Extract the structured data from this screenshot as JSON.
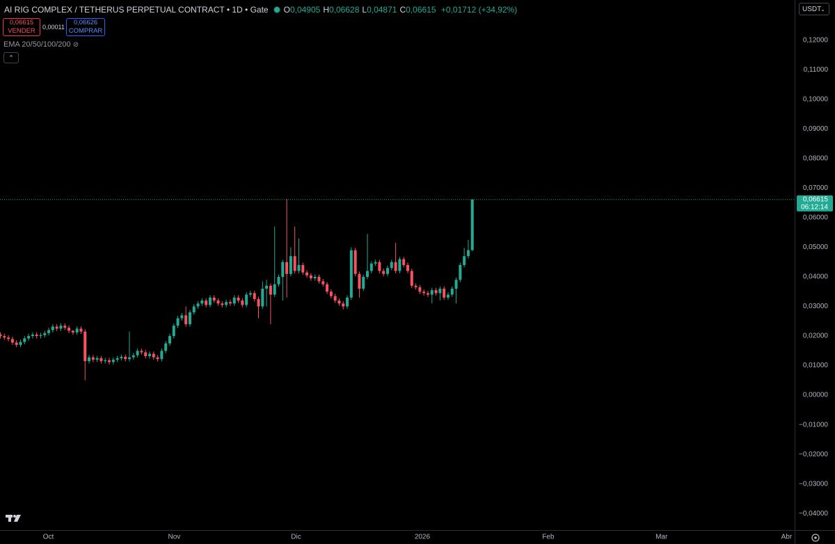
{
  "header": {
    "title": "AI RIG COMPLEX / TETHERUS PERPETUAL CONTRACT • 1D • Gate",
    "ohlc": [
      {
        "label": "O",
        "value": "0,04905"
      },
      {
        "label": "H",
        "value": "0,06628"
      },
      {
        "label": "L",
        "value": "0,04871"
      },
      {
        "label": "C",
        "value": "0,06615"
      }
    ],
    "change": "+0,01712 (+34,92%)",
    "sell": {
      "price": "0,06615",
      "label": "VENDER"
    },
    "spread": "0,00011",
    "buy": {
      "price": "0,06626",
      "label": "COMPRAR"
    },
    "indicator": "EMA 20/50/100/200",
    "currency": "USDT"
  },
  "chart_data": {
    "type": "candlestick",
    "up_color": "#22ab94",
    "down_color": "#f7525f",
    "grid": false,
    "last_price_label": "0,06615",
    "countdown": "06:12:14",
    "open": [
      0.0205,
      0.02,
      0.0195,
      0.019,
      0.0178,
      0.017,
      0.018,
      0.0192,
      0.02,
      0.0205,
      0.02,
      0.0203,
      0.021,
      0.022,
      0.0232,
      0.0225,
      0.0235,
      0.0228,
      0.0218,
      0.0212,
      0.0225,
      0.0215,
      0.0115,
      0.0128,
      0.012,
      0.0125,
      0.0115,
      0.0118,
      0.0112,
      0.012,
      0.0125,
      0.013,
      0.0122,
      0.0128,
      0.0135,
      0.015,
      0.0145,
      0.0132,
      0.014,
      0.0128,
      0.0122,
      0.015,
      0.0175,
      0.02,
      0.0235,
      0.026,
      0.027,
      0.024,
      0.028,
      0.03,
      0.031,
      0.032,
      0.0305,
      0.033,
      0.032,
      0.031,
      0.0305,
      0.0315,
      0.031,
      0.033,
      0.032,
      0.0305,
      0.034,
      0.0345,
      0.0325,
      0.03,
      0.036,
      0.037,
      0.034,
      0.0375,
      0.04,
      0.045,
      0.041,
      0.047,
      0.042,
      0.044,
      0.0415,
      0.0405,
      0.0395,
      0.04,
      0.0385,
      0.0375,
      0.035,
      0.0335,
      0.032,
      0.031,
      0.03,
      0.033,
      0.049,
      0.041,
      0.036,
      0.04,
      0.042,
      0.0445,
      0.045,
      0.042,
      0.041,
      0.043,
      0.045,
      0.042,
      0.046,
      0.044,
      0.042,
      0.037,
      0.0365,
      0.035,
      0.0345,
      0.034,
      0.0355,
      0.0345,
      0.036,
      0.033,
      0.034,
      0.036,
      0.039,
      0.044,
      0.047,
      0.04905
    ],
    "high": [
      0.0213,
      0.0208,
      0.0203,
      0.0198,
      0.0186,
      0.0188,
      0.02,
      0.0208,
      0.0213,
      0.0213,
      0.0211,
      0.0218,
      0.0228,
      0.024,
      0.024,
      0.0243,
      0.0243,
      0.0236,
      0.022,
      0.0233,
      0.0233,
      0.0223,
      0.0136,
      0.0136,
      0.0133,
      0.0133,
      0.0126,
      0.0126,
      0.0128,
      0.0133,
      0.0138,
      0.0138,
      0.0215,
      0.0143,
      0.0158,
      0.0158,
      0.0153,
      0.0148,
      0.0148,
      0.0136,
      0.0158,
      0.0183,
      0.0208,
      0.0243,
      0.0268,
      0.0278,
      0.03,
      0.0288,
      0.0308,
      0.0318,
      0.0328,
      0.0328,
      0.0338,
      0.0338,
      0.0328,
      0.0318,
      0.0323,
      0.0323,
      0.0338,
      0.0338,
      0.0328,
      0.0348,
      0.0353,
      0.0353,
      0.0333,
      0.0385,
      0.039,
      0.0378,
      0.057,
      0.0408,
      0.0458,
      0.0663,
      0.05,
      0.057,
      0.053,
      0.0448,
      0.0423,
      0.0413,
      0.0408,
      0.0408,
      0.0393,
      0.0383,
      0.0358,
      0.0343,
      0.0328,
      0.0318,
      0.0338,
      0.05,
      0.0498,
      0.0418,
      0.0408,
      0.0545,
      0.0453,
      0.0458,
      0.0458,
      0.0428,
      0.0438,
      0.0458,
      0.0515,
      0.0468,
      0.0468,
      0.0448,
      0.0428,
      0.0378,
      0.0373,
      0.0358,
      0.0353,
      0.0363,
      0.0363,
      0.0368,
      0.0368,
      0.0348,
      0.0368,
      0.0398,
      0.0448,
      0.0498,
      0.0525,
      0.06628
    ],
    "low": [
      0.0192,
      0.0187,
      0.0182,
      0.017,
      0.0162,
      0.0162,
      0.0172,
      0.0184,
      0.0192,
      0.0192,
      0.0192,
      0.0195,
      0.0202,
      0.0212,
      0.0217,
      0.0217,
      0.022,
      0.021,
      0.0204,
      0.0204,
      0.0207,
      0.005,
      0.0107,
      0.0112,
      0.0112,
      0.0107,
      0.0107,
      0.0104,
      0.0104,
      0.0112,
      0.0117,
      0.0114,
      0.0114,
      0.012,
      0.0127,
      0.0137,
      0.0124,
      0.0124,
      0.012,
      0.0114,
      0.0114,
      0.0142,
      0.0167,
      0.0192,
      0.0227,
      0.0252,
      0.0232,
      0.0232,
      0.0272,
      0.0292,
      0.0302,
      0.0297,
      0.0297,
      0.0312,
      0.0302,
      0.0297,
      0.0297,
      0.0302,
      0.0302,
      0.0312,
      0.0297,
      0.0297,
      0.0332,
      0.0317,
      0.026,
      0.0292,
      0.03,
      0.024,
      0.0332,
      0.0367,
      0.032,
      0.033,
      0.0402,
      0.0412,
      0.0412,
      0.0407,
      0.0397,
      0.0387,
      0.0387,
      0.0377,
      0.0367,
      0.0342,
      0.0327,
      0.0312,
      0.0302,
      0.029,
      0.0292,
      0.0322,
      0.0402,
      0.033,
      0.0352,
      0.0392,
      0.0412,
      0.0437,
      0.0412,
      0.0402,
      0.0402,
      0.0422,
      0.0412,
      0.0412,
      0.0432,
      0.0412,
      0.0362,
      0.0357,
      0.0342,
      0.0337,
      0.0332,
      0.031,
      0.0337,
      0.032,
      0.0322,
      0.0322,
      0.0332,
      0.031,
      0.0382,
      0.0432,
      0.0462,
      0.04871
    ],
    "close": [
      0.02,
      0.0195,
      0.019,
      0.0178,
      0.017,
      0.018,
      0.0192,
      0.02,
      0.0205,
      0.02,
      0.0203,
      0.021,
      0.022,
      0.0232,
      0.0225,
      0.0235,
      0.0228,
      0.0218,
      0.0212,
      0.0225,
      0.0215,
      0.0115,
      0.0128,
      0.012,
      0.0125,
      0.0115,
      0.0118,
      0.0112,
      0.012,
      0.0125,
      0.013,
      0.0122,
      0.0128,
      0.0135,
      0.015,
      0.0145,
      0.0132,
      0.014,
      0.0128,
      0.0122,
      0.015,
      0.0175,
      0.02,
      0.0235,
      0.026,
      0.027,
      0.024,
      0.028,
      0.03,
      0.031,
      0.032,
      0.0305,
      0.033,
      0.032,
      0.031,
      0.0305,
      0.0315,
      0.031,
      0.033,
      0.032,
      0.0305,
      0.034,
      0.0345,
      0.0325,
      0.03,
      0.036,
      0.037,
      0.034,
      0.0375,
      0.04,
      0.045,
      0.041,
      0.047,
      0.042,
      0.044,
      0.0415,
      0.0405,
      0.0395,
      0.04,
      0.0385,
      0.0375,
      0.035,
      0.0335,
      0.032,
      0.031,
      0.03,
      0.033,
      0.049,
      0.041,
      0.036,
      0.04,
      0.042,
      0.0445,
      0.045,
      0.042,
      0.041,
      0.043,
      0.045,
      0.042,
      0.046,
      0.044,
      0.042,
      0.037,
      0.0365,
      0.035,
      0.0345,
      0.034,
      0.0355,
      0.0345,
      0.036,
      0.033,
      0.034,
      0.036,
      0.039,
      0.044,
      0.047,
      0.04905,
      0.06615
    ],
    "xlim": [
      0,
      197
    ],
    "xticks": [
      {
        "value": 12,
        "label": "Oct"
      },
      {
        "value": 43.2,
        "label": "Nov"
      },
      {
        "value": 73.4,
        "label": "Dic"
      },
      {
        "value": 104.7,
        "label": "2026"
      },
      {
        "value": 135.9,
        "label": "Feb"
      },
      {
        "value": 164,
        "label": "Mar"
      },
      {
        "value": 195,
        "label": "Abr"
      }
    ],
    "ylim": [
      -0.0456,
      0.1336
    ],
    "yticks": [
      {
        "value": -0.04,
        "label": "−0,04000"
      },
      {
        "value": -0.03,
        "label": "−0,03000"
      },
      {
        "value": -0.02,
        "label": "−0,02000"
      },
      {
        "value": -0.01,
        "label": "−0,01000"
      },
      {
        "value": 0,
        "label": "0,00000"
      },
      {
        "value": 0.01,
        "label": "0,01000"
      },
      {
        "value": 0.02,
        "label": "0,02000"
      },
      {
        "value": 0.03,
        "label": "0,03000"
      },
      {
        "value": 0.04,
        "label": "0,04000"
      },
      {
        "value": 0.05,
        "label": "0,05000"
      },
      {
        "value": 0.06,
        "label": "0,06000"
      },
      {
        "value": 0.07,
        "label": "0,07000"
      },
      {
        "value": 0.08,
        "label": "0,08000"
      },
      {
        "value": 0.09,
        "label": "0,09000"
      },
      {
        "value": 0.1,
        "label": "0,10000"
      },
      {
        "value": 0.11,
        "label": "0,11000"
      },
      {
        "value": 0.12,
        "label": "0,12000"
      }
    ]
  }
}
